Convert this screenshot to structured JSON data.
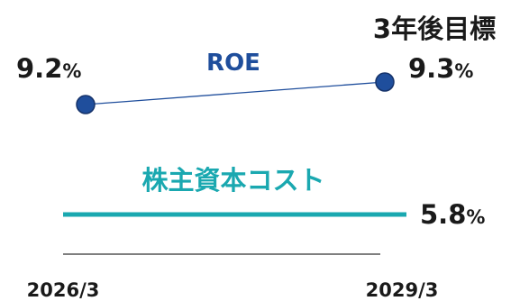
{
  "chart_data": {
    "type": "line",
    "x": [
      "2026/3",
      "2029/3"
    ],
    "series": [
      {
        "name": "ROE",
        "values": [
          9.2,
          9.3
        ],
        "labels": [
          "9.2",
          "9.3"
        ],
        "color": "#1f4e9c"
      },
      {
        "name": "株主資本コスト",
        "values": [
          5.8,
          5.8
        ],
        "labels": [
          "",
          "5.8"
        ],
        "color": "#1aa8b0"
      }
    ],
    "unit": "%",
    "annotation": "3年後目標",
    "title": "",
    "xlabel": "",
    "ylabel": "",
    "grid": false
  }
}
